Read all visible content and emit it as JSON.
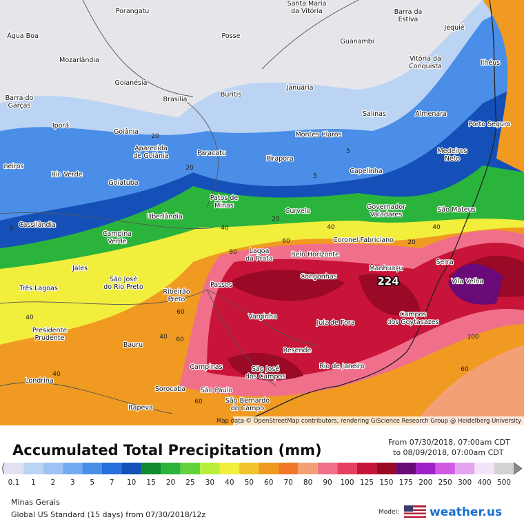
{
  "map": {
    "cities": [
      [
        "Porangatu"
      ],
      [
        "Santa Maria",
        "da Vitória"
      ],
      [
        "Barra da",
        "Estiva"
      ],
      [
        "Jequié"
      ],
      [
        "Água Boa"
      ],
      [
        "Posse"
      ],
      [
        "Guanambi"
      ],
      [
        "Mozarlândia"
      ],
      [
        "Vitória da",
        "Conquista"
      ],
      [
        "Ilhéus"
      ],
      [
        "Goianésia"
      ],
      [
        "Brasília"
      ],
      [
        "Buritis"
      ],
      [
        "Januária"
      ],
      [
        "Barra do",
        "Garças"
      ],
      [
        "Salinas"
      ],
      [
        "Almenara"
      ],
      [
        "Porto Seguro"
      ],
      [
        "Iporá"
      ],
      [
        "Goiânia"
      ],
      [
        "Montes Claros"
      ],
      [
        "Aparecida",
        "de Goiânia"
      ],
      [
        "Paracatu"
      ],
      [
        "Medeiros",
        "Neto"
      ],
      [
        "Pirapora"
      ],
      [
        "Capelinha"
      ],
      [
        "Rio Verde"
      ],
      [
        "Goiatuba"
      ],
      [
        "Patos de",
        "Minas"
      ],
      [
        "Governador",
        "Valadares"
      ],
      [
        "São Mateus"
      ],
      [
        "Uberlândia"
      ],
      [
        "Curvelo"
      ],
      [
        "Cassilândia"
      ],
      [
        "Campina",
        "Verde"
      ],
      [
        "Coronel Fabriciano"
      ],
      [
        "Lagoa",
        "da Prata"
      ],
      [
        "Belo Horizonte"
      ],
      [
        "Manhuaçu"
      ],
      [
        "Serra"
      ],
      [
        "Jales"
      ],
      [
        "Vila Velha"
      ],
      [
        "São José",
        "do Rio Preto"
      ],
      [
        "Congonhas"
      ],
      [
        "Passos"
      ],
      [
        "Três Lagoas"
      ],
      [
        "Ribeirão",
        "Preto"
      ],
      [
        "Campos",
        "dos Goytacazes"
      ],
      [
        "Juiz de Fora"
      ],
      [
        "Varginha"
      ],
      [
        "Presidente",
        "Prudente"
      ],
      [
        "Bauru"
      ],
      [
        "Resende"
      ],
      [
        "Campinas"
      ],
      [
        "São José",
        "dos Campos"
      ],
      [
        "Rio de Janeiro"
      ],
      [
        "Londrina"
      ],
      [
        "Sorocaba"
      ],
      [
        "São Paulo"
      ],
      [
        "Itapeva"
      ],
      [
        "São Bernardo",
        "do Campo"
      ],
      [
        "neiros"
      ]
    ],
    "contour_labels": [
      5,
      5,
      5,
      20,
      20,
      40,
      40,
      40,
      60,
      60,
      80,
      40,
      40,
      60,
      60,
      100,
      60,
      20,
      40,
      20
    ],
    "max_label": "224",
    "attribution": "Map data © OpenStreetMap contributors, rendering GIScience Research Group @ Heidelberg University"
  },
  "legend": {
    "title": "Accumulated Total Precipitation (mm)",
    "from": "From 07/30/2018, 07:00am CDT",
    "to": "to 08/09/2018, 07:00am CDT",
    "levels": [
      0.1,
      1,
      2,
      3,
      5,
      7,
      10,
      15,
      20,
      25,
      30,
      40,
      50,
      60,
      70,
      80,
      90,
      100,
      125,
      150,
      175,
      200,
      250,
      300,
      400,
      500
    ],
    "colors": [
      "#e1e1f2",
      "#bcd4f4",
      "#9cc3f3",
      "#74aaf0",
      "#4a8ee8",
      "#2670dc",
      "#1450b8",
      "#0f8a2e",
      "#2bb43c",
      "#62d23a",
      "#b8ee3c",
      "#f2ee3c",
      "#f0c42a",
      "#f09a22",
      "#f07828",
      "#f4a076",
      "#f0708c",
      "#e6405e",
      "#c81438",
      "#9a0a26",
      "#6a0a78",
      "#a020c8",
      "#d05ae4",
      "#e4a4f0",
      "#f4e4fa",
      "#d2d2d2"
    ]
  },
  "footer": {
    "region": "Minas Gerais",
    "model": "Global US Standard (15 days) from 07/30/2018/12z",
    "model_label": "Model:",
    "brand": "weather.us"
  }
}
